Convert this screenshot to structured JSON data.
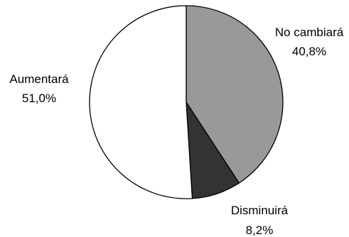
{
  "chart_data": {
    "type": "pie",
    "start_angle_deg": 0,
    "direction": "clockwise",
    "slices": [
      {
        "label": "No cambiará",
        "value": 40.8,
        "value_text": "40,8%",
        "color": "#999999"
      },
      {
        "label": "Disminuirá",
        "value": 8.2,
        "value_text": "8,2%",
        "color": "#333333"
      },
      {
        "label": "Aumentará",
        "value": 51.0,
        "value_text": "51,0%",
        "color": "#ffffff"
      }
    ]
  }
}
